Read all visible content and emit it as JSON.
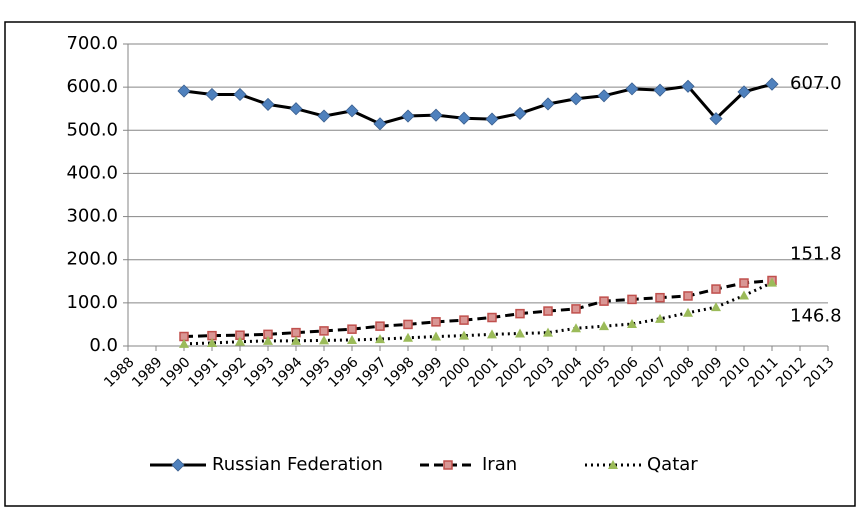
{
  "chart_data": {
    "type": "line",
    "categories": [
      "1988",
      "1989",
      "1990",
      "1991",
      "1992",
      "1993",
      "1994",
      "1995",
      "1996",
      "1997",
      "1998",
      "1999",
      "2000",
      "2001",
      "2002",
      "2003",
      "2004",
      "2005",
      "2006",
      "2007",
      "2008",
      "2009",
      "2010",
      "2011",
      "2012",
      "2013"
    ],
    "series": [
      {
        "name": "Russian Federation",
        "color": "#4f81bd",
        "line_color": "#000000",
        "line_style": "solid",
        "marker": "diamond",
        "values": [
          null,
          null,
          591,
          583,
          583,
          560,
          550,
          533,
          545,
          515,
          533,
          535,
          528,
          526,
          539,
          561,
          573,
          580,
          596,
          593,
          602,
          527,
          589,
          607,
          null,
          null
        ],
        "value_labels": [
          null,
          null,
          null,
          null,
          null,
          null,
          null,
          null,
          null,
          null,
          null,
          null,
          null,
          null,
          null,
          null,
          null,
          null,
          null,
          null,
          null,
          null,
          null,
          "607.0",
          null,
          null
        ]
      },
      {
        "name": "Iran",
        "color": "#c0504d",
        "line_color": "#000000",
        "line_style": "dashed",
        "marker": "square",
        "values": [
          null,
          null,
          22,
          24,
          25,
          27,
          31,
          35,
          39,
          46,
          50,
          56,
          60,
          66,
          75,
          81,
          86,
          104,
          108,
          112,
          116,
          132,
          146,
          151.8,
          null,
          null
        ],
        "value_labels": [
          null,
          null,
          null,
          null,
          null,
          null,
          null,
          null,
          null,
          null,
          null,
          null,
          null,
          null,
          null,
          null,
          null,
          null,
          null,
          null,
          null,
          null,
          null,
          "151.8",
          null,
          null
        ]
      },
      {
        "name": "Qatar",
        "color": "#9bbb59",
        "line_color": "#000000",
        "line_style": "dotted",
        "marker": "triangle",
        "values": [
          null,
          null,
          5,
          7,
          10,
          12,
          12,
          13,
          14,
          16,
          19,
          22,
          24,
          27,
          29,
          31,
          41,
          46,
          51,
          63,
          77,
          90,
          117,
          146.8,
          null,
          null
        ],
        "value_labels": [
          null,
          null,
          null,
          null,
          null,
          null,
          null,
          null,
          null,
          null,
          null,
          null,
          null,
          null,
          null,
          null,
          null,
          null,
          null,
          null,
          null,
          null,
          null,
          "146.8",
          null,
          null
        ]
      }
    ],
    "ylim": [
      0,
      700
    ],
    "yticks": [
      {
        "value": 0,
        "label": "0.0"
      },
      {
        "value": 100,
        "label": "100.0"
      },
      {
        "value": 200,
        "label": "200.0"
      },
      {
        "value": 300,
        "label": "300.0"
      },
      {
        "value": 400,
        "label": "400.0"
      },
      {
        "value": 500,
        "label": "500.0"
      },
      {
        "value": 600,
        "label": "600.0"
      },
      {
        "value": 700,
        "label": "700.0"
      }
    ],
    "grid": true,
    "legend": "bottom"
  }
}
